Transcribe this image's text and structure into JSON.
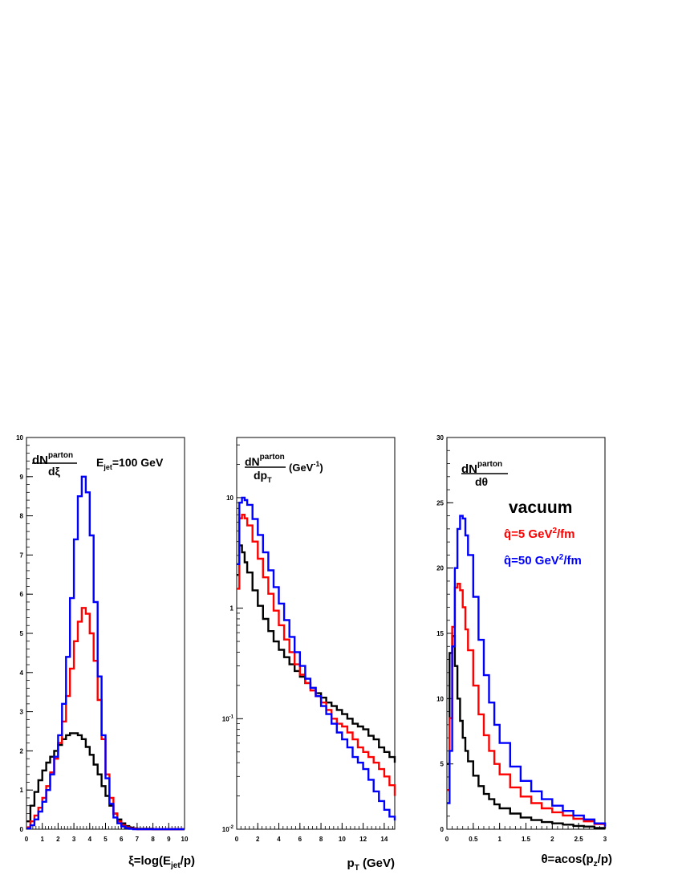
{
  "colors": {
    "vacuum": "#000000",
    "q5": "#ff0000",
    "q50": "#0000ff",
    "frame": "#000000"
  },
  "chart_data": [
    {
      "type": "line",
      "panel": "xi",
      "xlabel": "ξ=log(E_jet/p)",
      "ylabel": "dN^parton / dξ",
      "annotation": "E_jet=100 GeV",
      "xlim": [
        0,
        10
      ],
      "ylim": [
        0,
        10
      ],
      "yscale": "linear",
      "xticks": [
        0,
        1,
        2,
        3,
        4,
        5,
        6,
        7,
        8,
        9,
        10
      ],
      "xtick_labels": [
        "0",
        "1",
        "2",
        "3",
        "4",
        "5",
        "6",
        "7",
        "8",
        "9",
        "10"
      ],
      "yticks": [
        0,
        1,
        2,
        3,
        4,
        5,
        6,
        7,
        8,
        9,
        10
      ],
      "ytick_labels": [
        "0",
        "1",
        "2",
        "3",
        "4",
        "5",
        "6",
        "7",
        "8",
        "9",
        "10"
      ],
      "x": [
        0,
        0.25,
        0.5,
        0.75,
        1,
        1.25,
        1.5,
        1.75,
        2,
        2.25,
        2.5,
        2.75,
        3,
        3.25,
        3.5,
        3.75,
        4,
        4.25,
        4.5,
        4.75,
        5,
        5.25,
        5.5,
        5.75,
        6,
        6.25,
        6.5,
        6.75,
        7,
        7.5,
        8,
        8.5,
        9,
        9.5,
        10
      ],
      "series": [
        {
          "color_key": "vacuum",
          "values": [
            0.2,
            0.6,
            0.95,
            1.25,
            1.5,
            1.7,
            1.85,
            2.0,
            2.15,
            2.3,
            2.4,
            2.45,
            2.45,
            2.4,
            2.3,
            2.1,
            1.9,
            1.65,
            1.4,
            1.1,
            0.85,
            0.6,
            0.4,
            0.25,
            0.15,
            0.08,
            0.04,
            0.02,
            0.01,
            0.01,
            0,
            0,
            0,
            0,
            0
          ]
        },
        {
          "color_key": "q5",
          "values": [
            0.05,
            0.2,
            0.35,
            0.55,
            0.8,
            1.1,
            1.45,
            1.8,
            2.2,
            2.75,
            3.4,
            4.1,
            4.8,
            5.3,
            5.65,
            5.5,
            5.0,
            4.3,
            3.3,
            2.3,
            1.4,
            0.8,
            0.4,
            0.2,
            0.1,
            0.05,
            0.02,
            0.01,
            0,
            0,
            0,
            0,
            0,
            0,
            0
          ]
        },
        {
          "color_key": "q50",
          "values": [
            0.02,
            0.1,
            0.25,
            0.45,
            0.7,
            1.0,
            1.4,
            1.85,
            2.4,
            3.2,
            4.4,
            5.9,
            7.4,
            8.5,
            9.0,
            8.6,
            7.5,
            5.8,
            3.9,
            2.4,
            1.3,
            0.65,
            0.3,
            0.15,
            0.07,
            0.03,
            0.01,
            0,
            0,
            0,
            0,
            0,
            0,
            0,
            0
          ]
        }
      ]
    },
    {
      "type": "line",
      "panel": "pt",
      "xlabel": "p_T (GeV)",
      "ylabel": "dN^parton / dp_T (GeV^-1)",
      "xlim": [
        0,
        15
      ],
      "ylim": [
        0.01,
        35
      ],
      "yscale": "log",
      "xticks": [
        0,
        2,
        4,
        6,
        8,
        10,
        12,
        14
      ],
      "xtick_labels": [
        "0",
        "2",
        "4",
        "6",
        "8",
        "10",
        "12",
        "14"
      ],
      "yticks": [
        0.01,
        0.1,
        1,
        10
      ],
      "ytick_labels": [
        "10^-2",
        "10^-1",
        "1",
        "10"
      ],
      "x": [
        0,
        0.25,
        0.5,
        0.75,
        1,
        1.5,
        2,
        2.5,
        3,
        3.5,
        4,
        4.5,
        5,
        5.5,
        6,
        6.5,
        7,
        7.5,
        8,
        8.5,
        9,
        9.5,
        10,
        10.5,
        11,
        11.5,
        12,
        12.5,
        13,
        13.5,
        14,
        14.5,
        15
      ],
      "series": [
        {
          "color_key": "vacuum",
          "values": [
            2.0,
            3.7,
            3.2,
            2.6,
            2.1,
            1.45,
            1.05,
            0.8,
            0.62,
            0.5,
            0.42,
            0.36,
            0.31,
            0.27,
            0.24,
            0.21,
            0.19,
            0.17,
            0.155,
            0.14,
            0.13,
            0.12,
            0.11,
            0.1,
            0.09,
            0.085,
            0.08,
            0.07,
            0.065,
            0.055,
            0.05,
            0.045,
            0.04
          ]
        },
        {
          "color_key": "q5",
          "values": [
            1.5,
            6.5,
            7.0,
            6.5,
            5.6,
            4.0,
            2.8,
            1.9,
            1.35,
            0.95,
            0.7,
            0.52,
            0.4,
            0.31,
            0.25,
            0.21,
            0.18,
            0.16,
            0.14,
            0.12,
            0.1,
            0.09,
            0.085,
            0.075,
            0.065,
            0.055,
            0.05,
            0.045,
            0.04,
            0.035,
            0.03,
            0.025,
            0.02
          ]
        },
        {
          "color_key": "q50",
          "values": [
            2.5,
            9.0,
            10.0,
            9.5,
            8.6,
            6.4,
            4.6,
            3.2,
            2.2,
            1.55,
            1.1,
            0.78,
            0.55,
            0.4,
            0.3,
            0.23,
            0.19,
            0.16,
            0.13,
            0.11,
            0.09,
            0.075,
            0.065,
            0.055,
            0.045,
            0.04,
            0.035,
            0.028,
            0.022,
            0.018,
            0.015,
            0.013,
            0.012
          ]
        }
      ]
    },
    {
      "type": "line",
      "panel": "theta",
      "xlabel": "θ=acos(p_z/p)",
      "ylabel": "dN^parton / dθ",
      "xlim": [
        0,
        3
      ],
      "ylim": [
        0,
        30
      ],
      "yscale": "linear",
      "xticks": [
        0,
        0.5,
        1,
        1.5,
        2,
        2.5,
        3
      ],
      "xtick_labels": [
        "0",
        "0.5",
        "1",
        "1.5",
        "2",
        "2.5",
        "3"
      ],
      "yticks": [
        0,
        5,
        10,
        15,
        20,
        25,
        30
      ],
      "ytick_labels": [
        "0",
        "5",
        "10",
        "15",
        "20",
        "25",
        "30"
      ],
      "x": [
        0,
        0.05,
        0.1,
        0.15,
        0.2,
        0.25,
        0.3,
        0.35,
        0.4,
        0.5,
        0.6,
        0.7,
        0.8,
        0.9,
        1.0,
        1.2,
        1.4,
        1.6,
        1.8,
        2.0,
        2.2,
        2.4,
        2.6,
        2.8,
        3.0
      ],
      "series": [
        {
          "color_key": "vacuum",
          "values": [
            5,
            13.5,
            14.8,
            12.5,
            10,
            8.3,
            7,
            6,
            5.2,
            4.1,
            3.3,
            2.7,
            2.3,
            1.9,
            1.6,
            1.2,
            0.9,
            0.7,
            0.55,
            0.45,
            0.35,
            0.25,
            0.2,
            0.1,
            0.05
          ]
        },
        {
          "color_key": "q5",
          "values": [
            3,
            8.5,
            15.5,
            18.5,
            18.8,
            18.3,
            17,
            15.3,
            13.7,
            11,
            8.8,
            7.2,
            6,
            5,
            4.2,
            3.2,
            2.5,
            2,
            1.6,
            1.3,
            1.05,
            0.8,
            0.6,
            0.4,
            0.2
          ]
        },
        {
          "color_key": "q50",
          "values": [
            2,
            6,
            14,
            20,
            23,
            24,
            23.8,
            22.5,
            21,
            17.8,
            14.5,
            11.8,
            9.7,
            8,
            6.6,
            4.8,
            3.7,
            2.9,
            2.3,
            1.8,
            1.4,
            1.05,
            0.75,
            0.45,
            0.2
          ]
        }
      ],
      "legend": {
        "title": "vacuum",
        "entries": [
          {
            "label": "q̂=5 GeV²/fm",
            "color_key": "q5"
          },
          {
            "label": "q̂=50 GeV²/fm",
            "color_key": "q50"
          }
        ]
      }
    }
  ],
  "text": {
    "p1": {
      "xlabel_pre": "ξ=log(E",
      "xlabel_sub": "jet",
      "xlabel_post": "/p)",
      "ylab_num": "dN",
      "ylab_sup": "parton",
      "ylab_den": "dξ",
      "anno_pre": "E",
      "anno_sub": "jet",
      "anno_post": "=100 GeV"
    },
    "p2": {
      "xlabel_main": "p",
      "xlabel_sub": "T",
      "xlabel_post": " (GeV)",
      "ylab_num": "dN",
      "ylab_sup": "parton",
      "ylab_den": "dp",
      "ylab_den_sub": "T",
      "ylab_unit_pre": "(GeV",
      "ylab_unit_sup": "-1",
      "ylab_unit_post": ")"
    },
    "p3": {
      "xlabel_pre": "θ=acos(p",
      "xlabel_sub": "z",
      "xlabel_post": "/p)",
      "ylab_num": "dN",
      "ylab_sup": "parton",
      "ylab_den": "dθ",
      "legend_title": "vacuum",
      "leg1_pre": "q̂=5 GeV",
      "leg1_sup": "2",
      "leg1_post": "/fm",
      "leg2_pre": "q̂=50 GeV",
      "leg2_sup": "2",
      "leg2_post": "/fm"
    }
  }
}
